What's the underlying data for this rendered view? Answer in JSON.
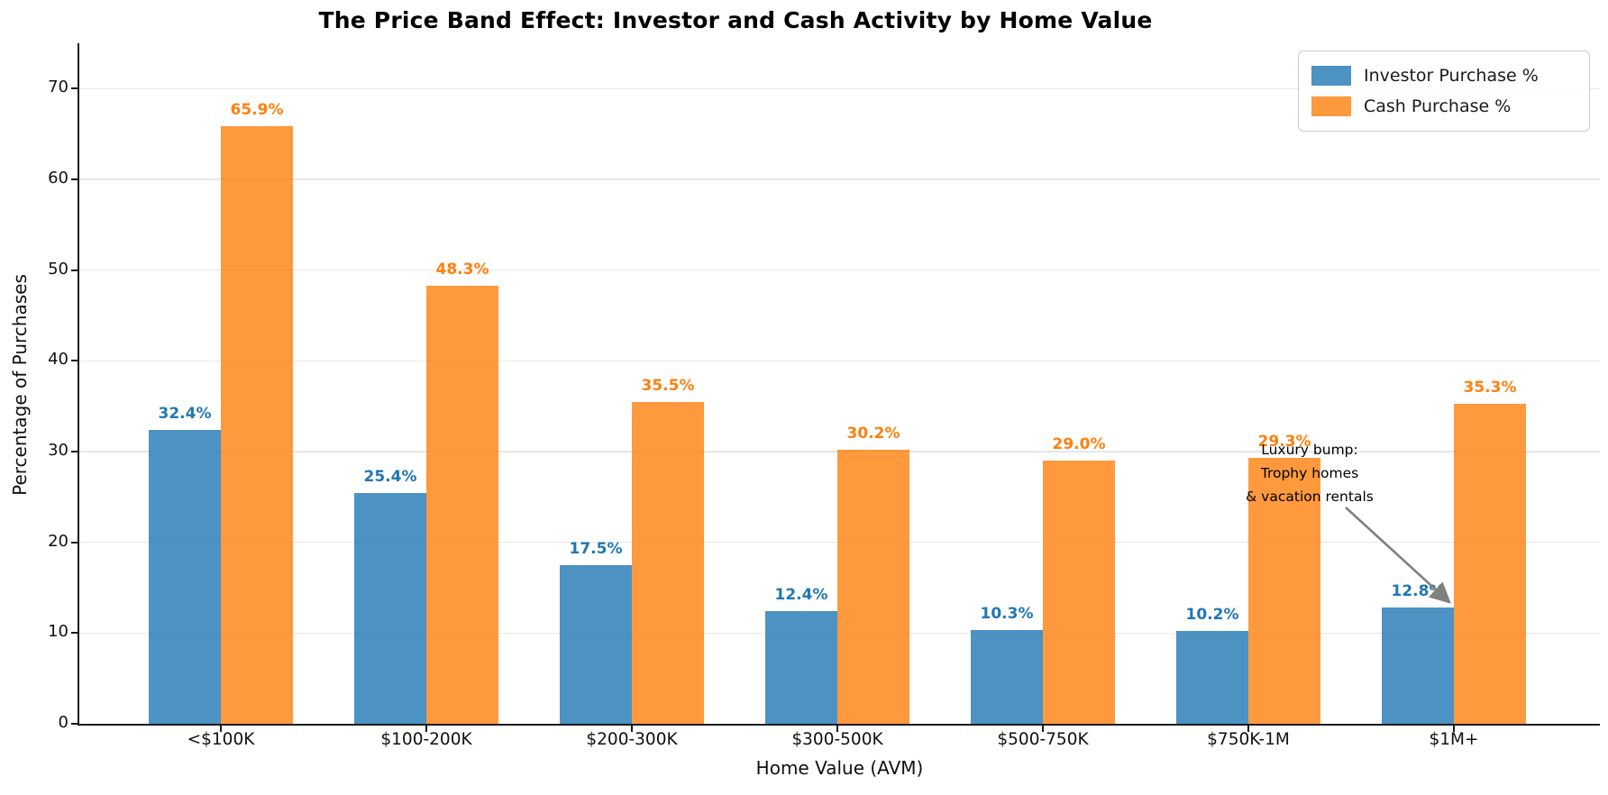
{
  "chart_data": {
    "type": "bar",
    "title": "The Price Band Effect: Investor and Cash Activity by Home Value",
    "xlabel": "Home Value (AVM)",
    "ylabel": "Percentage of Purchases",
    "categories": [
      "<$100K",
      "$100-200K",
      "$200-300K",
      "$300-500K",
      "$500-750K",
      "$750K-1M",
      "$1M+"
    ],
    "series": [
      {
        "name": "Investor Purchase %",
        "bar_color": "rgba(31,119,180,0.8)",
        "label_color": "#1f77b4",
        "values": [
          32.4,
          25.4,
          17.5,
          12.4,
          10.3,
          10.2,
          12.8
        ],
        "value_labels": [
          "32.4%",
          "25.4%",
          "17.5%",
          "12.4%",
          "10.3%",
          "10.2%",
          "12.8%"
        ]
      },
      {
        "name": "Cash Purchase %",
        "bar_color": "rgba(255,127,14,0.8)",
        "label_color": "#ff7f0e",
        "values": [
          65.9,
          48.3,
          35.5,
          30.2,
          29.0,
          29.3,
          35.3
        ],
        "value_labels": [
          "65.9%",
          "48.3%",
          "35.5%",
          "30.2%",
          "29.0%",
          "29.3%",
          "35.3%"
        ]
      }
    ],
    "ylim": [
      0,
      75
    ],
    "yticks": [
      0,
      10,
      20,
      30,
      40,
      50,
      60,
      70
    ],
    "grid": "horizontal",
    "grid_color": "#e7e7e7",
    "legend_position": "upper right",
    "annotation": {
      "text_lines": [
        "Luxury bump:",
        "Trophy homes",
        "& vacation rentals"
      ],
      "arrow_color": "#808080",
      "points_to": "$1M+ Investor Purchase bar"
    }
  }
}
